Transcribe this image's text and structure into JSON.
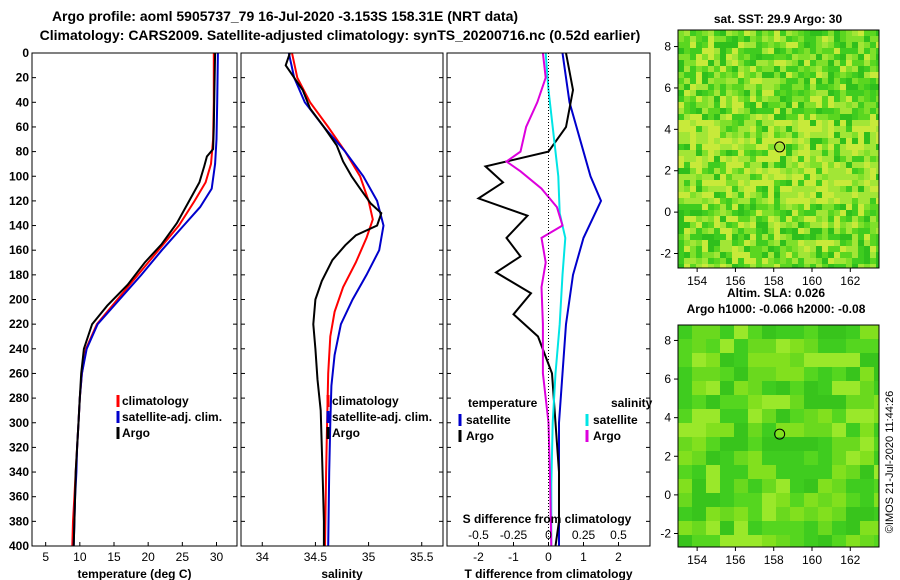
{
  "header": {
    "line1": "Argo profile: aoml 5905737_79 16-Jul-2020 -3.153S 158.31E (NRT data)",
    "line2": "Climatology: CARS2009. Satellite-adjusted climatology: synTS_20200716.nc (0.52d earlier)"
  },
  "side": {
    "sst_title": "sat. SST: 29.9 Argo: 30",
    "sla_title1": "Altim. SLA: 0.026",
    "sla_title2": "Argo h1000: -0.066 h2000: -0.08",
    "stamp": "©IMOS 21-Jul-2020 11:44:26"
  },
  "colors": {
    "climatology": "#ff0000",
    "satellite": "#0000cc",
    "argo": "#000000",
    "sal_satellite": "#00e5e5",
    "sal_argo": "#dd00dd",
    "map_bg": "#44cc22"
  },
  "chart_data": [
    {
      "type": "line",
      "name": "temperature",
      "xlabel": "temperature (deg C)",
      "ylabel": "depth",
      "xlim": [
        3,
        33
      ],
      "ylim": [
        400,
        0
      ],
      "xticks": [
        "5",
        "10",
        "15",
        "20",
        "25",
        "30"
      ],
      "xtick_values": [
        5,
        10,
        15,
        20,
        25,
        30
      ],
      "yticks": [
        "0",
        "20",
        "40",
        "60",
        "80",
        "100",
        "120",
        "140",
        "160",
        "180",
        "200",
        "220",
        "240",
        "260",
        "280",
        "300",
        "320",
        "340",
        "360",
        "380",
        "400"
      ],
      "legend": [
        "climatology",
        "satellite-adj. clim.",
        "Argo"
      ],
      "series": [
        {
          "name": "climatology",
          "points": [
            [
              29.6,
              0
            ],
            [
              29.6,
              40
            ],
            [
              29.5,
              70
            ],
            [
              29.2,
              90
            ],
            [
              28.4,
              105
            ],
            [
              26.8,
              120
            ],
            [
              24.5,
              140
            ],
            [
              21.5,
              160
            ],
            [
              18.5,
              180
            ],
            [
              15.5,
              200
            ],
            [
              12.5,
              220
            ],
            [
              10.9,
              240
            ],
            [
              10.3,
              260
            ],
            [
              10.0,
              280
            ],
            [
              9.8,
              300
            ],
            [
              9.6,
              320
            ],
            [
              9.4,
              340
            ],
            [
              9.2,
              360
            ],
            [
              9.0,
              380
            ],
            [
              8.9,
              400
            ]
          ]
        },
        {
          "name": "satellite-adj. clim.",
          "points": [
            [
              30.2,
              0
            ],
            [
              30.1,
              40
            ],
            [
              30.0,
              70
            ],
            [
              29.8,
              90
            ],
            [
              29.3,
              110
            ],
            [
              27.6,
              125
            ],
            [
              25.2,
              140
            ],
            [
              22.0,
              160
            ],
            [
              19.0,
              180
            ],
            [
              15.8,
              200
            ],
            [
              12.6,
              220
            ],
            [
              11.0,
              240
            ],
            [
              10.3,
              260
            ],
            [
              10.0,
              280
            ],
            [
              9.8,
              300
            ],
            [
              9.6,
              320
            ],
            [
              9.5,
              340
            ],
            [
              9.3,
              360
            ],
            [
              9.2,
              380
            ],
            [
              9.1,
              400
            ]
          ]
        },
        {
          "name": "Argo",
          "points": [
            [
              29.8,
              0
            ],
            [
              29.7,
              30
            ],
            [
              29.6,
              60
            ],
            [
              29.5,
              78
            ],
            [
              28.6,
              84
            ],
            [
              28.2,
              92
            ],
            [
              27.5,
              105
            ],
            [
              26.0,
              120
            ],
            [
              24.2,
              138
            ],
            [
              22.0,
              155
            ],
            [
              19.5,
              170
            ],
            [
              17.0,
              188
            ],
            [
              14.0,
              205
            ],
            [
              11.8,
              220
            ],
            [
              10.6,
              240
            ],
            [
              10.2,
              260
            ],
            [
              10.0,
              280
            ],
            [
              9.8,
              300
            ],
            [
              9.6,
              320
            ],
            [
              9.4,
              340
            ],
            [
              9.3,
              360
            ],
            [
              9.2,
              380
            ],
            [
              9.1,
              400
            ]
          ]
        }
      ]
    },
    {
      "type": "line",
      "name": "salinity",
      "xlabel": "salinity",
      "ylabel": "depth",
      "xlim": [
        33.8,
        35.7
      ],
      "ylim": [
        400,
        0
      ],
      "xticks": [
        "34",
        "34.5",
        "35",
        "35.5"
      ],
      "xtick_values": [
        34,
        34.5,
        35,
        35.5
      ],
      "legend": [
        "climatology",
        "satellite-adj. clim.",
        "Argo"
      ],
      "series": [
        {
          "name": "climatology",
          "points": [
            [
              34.28,
              0
            ],
            [
              34.33,
              20
            ],
            [
              34.45,
              40
            ],
            [
              34.62,
              60
            ],
            [
              34.78,
              80
            ],
            [
              34.92,
              100
            ],
            [
              35.0,
              120
            ],
            [
              35.04,
              135
            ],
            [
              34.98,
              150
            ],
            [
              34.88,
              170
            ],
            [
              34.76,
              190
            ],
            [
              34.68,
              210
            ],
            [
              34.64,
              230
            ],
            [
              34.62,
              260
            ],
            [
              34.61,
              300
            ],
            [
              34.6,
              340
            ],
            [
              34.59,
              400
            ]
          ]
        },
        {
          "name": "satellite-adj. clim.",
          "points": [
            [
              34.25,
              0
            ],
            [
              34.3,
              20
            ],
            [
              34.4,
              40
            ],
            [
              34.58,
              60
            ],
            [
              34.78,
              80
            ],
            [
              34.95,
              100
            ],
            [
              35.08,
              120
            ],
            [
              35.14,
              140
            ],
            [
              35.1,
              160
            ],
            [
              34.98,
              180
            ],
            [
              34.85,
              200
            ],
            [
              34.74,
              220
            ],
            [
              34.68,
              245
            ],
            [
              34.65,
              270
            ],
            [
              34.64,
              300
            ],
            [
              34.63,
              340
            ],
            [
              34.62,
              400
            ]
          ]
        },
        {
          "name": "Argo",
          "points": [
            [
              34.26,
              0
            ],
            [
              34.22,
              10
            ],
            [
              34.3,
              20
            ],
            [
              34.38,
              30
            ],
            [
              34.45,
              45
            ],
            [
              34.58,
              60
            ],
            [
              34.7,
              75
            ],
            [
              34.76,
              88
            ],
            [
              34.84,
              100
            ],
            [
              34.92,
              110
            ],
            [
              35.02,
              122
            ],
            [
              35.12,
              130
            ],
            [
              35.08,
              140
            ],
            [
              34.88,
              148
            ],
            [
              34.78,
              156
            ],
            [
              34.66,
              168
            ],
            [
              34.56,
              185
            ],
            [
              34.5,
              200
            ],
            [
              34.48,
              220
            ],
            [
              34.5,
              240
            ],
            [
              34.52,
              265
            ],
            [
              34.55,
              290
            ],
            [
              34.56,
              320
            ],
            [
              34.57,
              350
            ],
            [
              34.58,
              380
            ],
            [
              34.58,
              400
            ]
          ]
        }
      ]
    },
    {
      "type": "line",
      "name": "difference",
      "xlabel": "T difference from climatology",
      "xlabel2": "S difference from climatology",
      "xlim": [
        -2.9,
        2.9
      ],
      "ylim": [
        400,
        0
      ],
      "xticks": [
        "-2",
        "-1",
        "0",
        "1",
        "2"
      ],
      "xtick_values": [
        -2,
        -1,
        0,
        1,
        2
      ],
      "xticks2": [
        "-0.5",
        "-0.25",
        "0",
        "0.25",
        "0.5"
      ],
      "legend": {
        "temperature_heading": "temperature",
        "salinity_heading": "salinity",
        "sat_label": "satellite",
        "argo_label": "Argo"
      },
      "series": [
        {
          "name": "T satellite",
          "points": [
            [
              0.4,
              0
            ],
            [
              0.6,
              40
            ],
            [
              0.9,
              70
            ],
            [
              1.2,
              100
            ],
            [
              1.5,
              120
            ],
            [
              1.0,
              150
            ],
            [
              0.7,
              180
            ],
            [
              0.5,
              220
            ],
            [
              0.4,
              260
            ],
            [
              0.3,
              300
            ],
            [
              0.3,
              350
            ],
            [
              0.3,
              400
            ]
          ]
        },
        {
          "name": "T Argo",
          "points": [
            [
              0.5,
              0
            ],
            [
              0.7,
              30
            ],
            [
              0.5,
              60
            ],
            [
              0.0,
              80
            ],
            [
              -1.8,
              92
            ],
            [
              -1.3,
              105
            ],
            [
              -2.0,
              118
            ],
            [
              -0.6,
              132
            ],
            [
              -1.2,
              150
            ],
            [
              -0.8,
              165
            ],
            [
              -1.5,
              178
            ],
            [
              -0.5,
              195
            ],
            [
              -1.0,
              212
            ],
            [
              -0.3,
              230
            ],
            [
              0.1,
              260
            ],
            [
              0.2,
              300
            ],
            [
              0.3,
              340
            ],
            [
              0.3,
              380
            ],
            [
              0.2,
              400
            ]
          ]
        },
        {
          "name": "S satellite",
          "points": [
            [
              -0.02,
              0
            ],
            [
              0.0,
              30
            ],
            [
              0.03,
              60
            ],
            [
              0.07,
              100
            ],
            [
              0.08,
              130
            ],
            [
              0.12,
              150
            ],
            [
              0.1,
              180
            ],
            [
              0.08,
              220
            ],
            [
              0.05,
              260
            ],
            [
              0.03,
              300
            ],
            [
              0.02,
              350
            ],
            [
              0.02,
              400
            ]
          ]
        },
        {
          "name": "S Argo",
          "points": [
            [
              -0.04,
              0
            ],
            [
              -0.02,
              20
            ],
            [
              -0.08,
              40
            ],
            [
              -0.16,
              60
            ],
            [
              -0.2,
              80
            ],
            [
              -0.3,
              88
            ],
            [
              -0.2,
              96
            ],
            [
              -0.05,
              110
            ],
            [
              0.06,
              125
            ],
            [
              0.1,
              140
            ],
            [
              -0.05,
              150
            ],
            [
              -0.02,
              170
            ],
            [
              -0.05,
              190
            ],
            [
              -0.04,
              220
            ],
            [
              -0.04,
              260
            ],
            [
              0.0,
              300
            ],
            [
              0.01,
              340
            ],
            [
              0.02,
              400
            ]
          ]
        }
      ]
    },
    {
      "type": "heatmap",
      "name": "sst_map",
      "title": "sat. SST: 29.9 Argo: 30",
      "xlim": [
        153,
        163.5
      ],
      "ylim": [
        -2.7,
        8.8
      ],
      "xticks": [
        "154",
        "156",
        "158",
        "160",
        "162"
      ],
      "xtick_values": [
        154,
        156,
        158,
        160,
        162
      ],
      "yticks": [
        "-2",
        "0",
        "2",
        "4",
        "6",
        "8"
      ],
      "ytick_values": [
        -2,
        0,
        2,
        4,
        6,
        8
      ],
      "marker": {
        "lon": 158.31,
        "lat": 3.15
      }
    },
    {
      "type": "heatmap",
      "name": "sla_map",
      "title": "Argo h1000: -0.066 h2000: -0.08",
      "xlim": [
        153,
        163.5
      ],
      "ylim": [
        -2.7,
        8.8
      ],
      "xticks": [
        "154",
        "156",
        "158",
        "160",
        "162"
      ],
      "xtick_values": [
        154,
        156,
        158,
        160,
        162
      ],
      "yticks": [
        "-2",
        "0",
        "2",
        "4",
        "6",
        "8"
      ],
      "ytick_values": [
        -2,
        0,
        2,
        4,
        6,
        8
      ],
      "marker": {
        "lon": 158.31,
        "lat": 3.15
      }
    }
  ]
}
